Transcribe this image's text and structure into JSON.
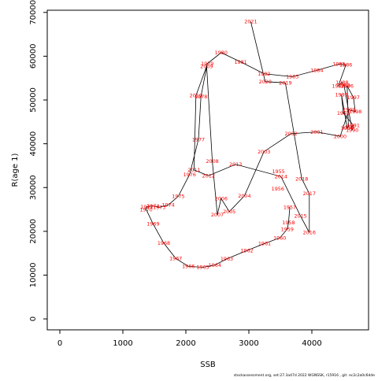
{
  "chart_data": {
    "type": "scatter",
    "connected": true,
    "xlabel": "SSB",
    "ylabel": "R(age 1)",
    "xlim": [
      -200,
      4900
    ],
    "ylim": [
      -2500,
      70500
    ],
    "xticks": [
      0,
      1000,
      2000,
      3000,
      4000
    ],
    "yticks": [
      0,
      10000,
      20000,
      30000,
      40000,
      50000,
      60000,
      70000
    ],
    "line_color": "#000000",
    "label_color": "#ff0000",
    "footnote": "stockassessment.org, set:27.3a47d 2022 WGNSSK, r15916 , git: ec2c2a0c6dde",
    "points": [
      {
        "year": 1957,
        "x": 3650,
        "y": 25500
      },
      {
        "year": 1958,
        "x": 3630,
        "y": 22000
      },
      {
        "year": 1959,
        "x": 3610,
        "y": 20500
      },
      {
        "year": 1960,
        "x": 3490,
        "y": 18500
      },
      {
        "year": 1961,
        "x": 3250,
        "y": 17200
      },
      {
        "year": 1962,
        "x": 2970,
        "y": 15600
      },
      {
        "year": 1963,
        "x": 2650,
        "y": 13700
      },
      {
        "year": 1964,
        "x": 2460,
        "y": 12300
      },
      {
        "year": 1965,
        "x": 2270,
        "y": 11800
      },
      {
        "year": 1966,
        "x": 2040,
        "y": 12000
      },
      {
        "year": 1967,
        "x": 1840,
        "y": 13800
      },
      {
        "year": 1968,
        "x": 1650,
        "y": 17300
      },
      {
        "year": 1969,
        "x": 1480,
        "y": 21700
      },
      {
        "year": 1970,
        "x": 1370,
        "y": 25000
      },
      {
        "year": 1971,
        "x": 1380,
        "y": 25600
      },
      {
        "year": 1972,
        "x": 1480,
        "y": 25800
      },
      {
        "year": 1973,
        "x": 1580,
        "y": 25500
      },
      {
        "year": 1974,
        "x": 1720,
        "y": 26000
      },
      {
        "year": 1975,
        "x": 1880,
        "y": 28000
      },
      {
        "year": 1976,
        "x": 2060,
        "y": 33000
      },
      {
        "year": 1977,
        "x": 2200,
        "y": 41000
      },
      {
        "year": 1978,
        "x": 2240,
        "y": 50800
      },
      {
        "year": 1979,
        "x": 2340,
        "y": 58300
      },
      {
        "year": 1980,
        "x": 2560,
        "y": 60800
      },
      {
        "year": 1981,
        "x": 2870,
        "y": 58700
      },
      {
        "year": 1982,
        "x": 3240,
        "y": 56000
      },
      {
        "year": 1983,
        "x": 3690,
        "y": 55300
      },
      {
        "year": 1984,
        "x": 4080,
        "y": 56800
      },
      {
        "year": 1985,
        "x": 4430,
        "y": 58200
      },
      {
        "year": 1986,
        "x": 4540,
        "y": 58000
      },
      {
        "year": 1987,
        "x": 4420,
        "y": 53200
      },
      {
        "year": 1988,
        "x": 4480,
        "y": 54000
      },
      {
        "year": 1989,
        "x": 4510,
        "y": 53400
      },
      {
        "year": 1990,
        "x": 4640,
        "y": 43100
      },
      {
        "year": 1991,
        "x": 4660,
        "y": 44200
      },
      {
        "year": 1992,
        "x": 4500,
        "y": 47000
      },
      {
        "year": 1993,
        "x": 4470,
        "y": 51200
      },
      {
        "year": 1994,
        "x": 4560,
        "y": 43600
      },
      {
        "year": 1995,
        "x": 4580,
        "y": 43800
      },
      {
        "year": 1996,
        "x": 4560,
        "y": 53200
      },
      {
        "year": 1997,
        "x": 4660,
        "y": 50600
      },
      {
        "year": 1998,
        "x": 4690,
        "y": 47300
      },
      {
        "year": 1999,
        "x": 4590,
        "y": 47800
      },
      {
        "year": 2000,
        "x": 4450,
        "y": 41700
      },
      {
        "year": 2001,
        "x": 4080,
        "y": 42700
      },
      {
        "year": 2002,
        "x": 3670,
        "y": 42300
      },
      {
        "year": 2003,
        "x": 3240,
        "y": 38200
      },
      {
        "year": 2004,
        "x": 2930,
        "y": 28100
      },
      {
        "year": 2005,
        "x": 2690,
        "y": 24500
      },
      {
        "year": 2006,
        "x": 2560,
        "y": 27500
      },
      {
        "year": 2007,
        "x": 2500,
        "y": 23800
      },
      {
        "year": 2008,
        "x": 2420,
        "y": 36000
      },
      {
        "year": 2009,
        "x": 2330,
        "y": 57700
      },
      {
        "year": 2010,
        "x": 2160,
        "y": 51000
      },
      {
        "year": 2011,
        "x": 2130,
        "y": 34000
      },
      {
        "year": 2012,
        "x": 2360,
        "y": 32700
      },
      {
        "year": 2013,
        "x": 2790,
        "y": 35300
      },
      {
        "year": 2014,
        "x": 3510,
        "y": 32500
      },
      {
        "year": 2015,
        "x": 3820,
        "y": 23500
      },
      {
        "year": 2016,
        "x": 3960,
        "y": 19700
      },
      {
        "year": 2017,
        "x": 3960,
        "y": 28600
      },
      {
        "year": 2018,
        "x": 3840,
        "y": 32000
      },
      {
        "year": 2019,
        "x": 3580,
        "y": 53900
      },
      {
        "year": 2020,
        "x": 3260,
        "y": 54200
      },
      {
        "year": 2021,
        "x": 3030,
        "y": 67900
      }
    ],
    "extra_labels": [
      {
        "year": 1955,
        "x": 3470,
        "y": 33700
      },
      {
        "year": 1956,
        "x": 3460,
        "y": 29700
      }
    ]
  }
}
